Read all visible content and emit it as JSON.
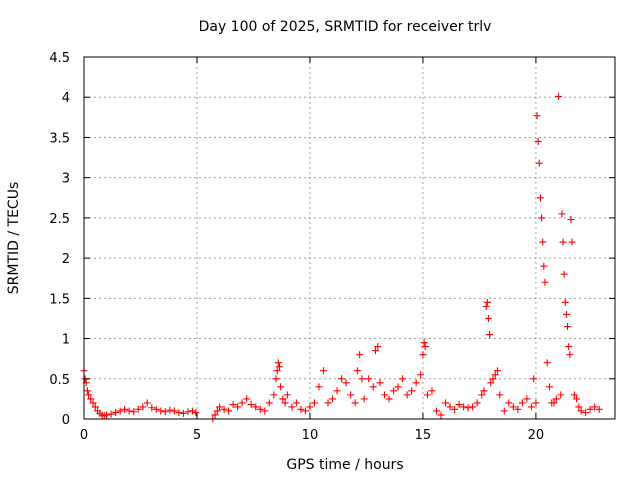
{
  "chart_data": {
    "type": "scatter",
    "title": "Day 100 of 2025, SRMTID for receiver trlv",
    "xlabel": "GPS time / hours",
    "ylabel": "SRMTID / TECUs",
    "xlim": [
      0,
      23.5
    ],
    "ylim": [
      0,
      4.5
    ],
    "xticks": [
      0,
      5,
      10,
      15,
      20
    ],
    "xtick_labels": [
      "0",
      "5",
      "10",
      "15",
      "20"
    ],
    "yticks": [
      0,
      0.5,
      1,
      1.5,
      2,
      2.5,
      3,
      3.5,
      4,
      4.5
    ],
    "ytick_labels": [
      "0",
      "0.5",
      "1",
      "1.5",
      "2",
      "2.5",
      "3",
      "3.5",
      "4",
      "4.5"
    ],
    "grid": true,
    "marker": "plus",
    "series": [
      {
        "name": "SRMTID",
        "color": "#ff0000",
        "x": [
          0.0,
          0.05,
          0.1,
          0.15,
          0.2,
          0.3,
          0.4,
          0.5,
          0.6,
          0.7,
          0.8,
          0.9,
          1.0,
          1.2,
          1.4,
          1.6,
          1.8,
          2.0,
          2.2,
          2.4,
          2.6,
          2.8,
          3.0,
          3.2,
          3.4,
          3.6,
          3.8,
          4.0,
          4.2,
          4.4,
          4.6,
          4.8,
          4.95,
          5.7,
          5.8,
          5.9,
          6.0,
          6.2,
          6.4,
          6.6,
          6.8,
          7.0,
          7.2,
          7.4,
          7.6,
          7.8,
          8.0,
          8.2,
          8.4,
          8.5,
          8.55,
          8.6,
          8.65,
          8.7,
          8.8,
          8.9,
          9.0,
          9.2,
          9.4,
          9.6,
          9.8,
          10.0,
          10.2,
          10.4,
          10.6,
          10.8,
          11.0,
          11.2,
          11.4,
          11.6,
          11.8,
          12.0,
          12.1,
          12.2,
          12.3,
          12.4,
          12.6,
          12.8,
          12.9,
          13.0,
          13.1,
          13.3,
          13.5,
          13.7,
          13.9,
          14.1,
          14.3,
          14.5,
          14.7,
          14.9,
          15.0,
          15.05,
          15.1,
          15.2,
          15.4,
          15.6,
          15.8,
          16.0,
          16.2,
          16.4,
          16.6,
          16.8,
          17.0,
          17.2,
          17.4,
          17.6,
          17.7,
          17.8,
          17.85,
          17.9,
          17.95,
          18.0,
          18.1,
          18.2,
          18.3,
          18.4,
          18.6,
          18.8,
          19.0,
          19.2,
          19.4,
          19.6,
          19.8,
          19.9,
          20.0,
          20.05,
          20.1,
          20.15,
          20.2,
          20.25,
          20.3,
          20.35,
          20.4,
          20.5,
          20.6,
          20.7,
          20.8,
          20.9,
          21.0,
          21.1,
          21.15,
          21.2,
          21.25,
          21.3,
          21.35,
          21.4,
          21.45,
          21.5,
          21.55,
          21.6,
          21.7,
          21.8,
          21.9,
          22.0,
          22.2,
          22.4,
          22.6,
          22.8
        ],
        "y": [
          0.6,
          0.5,
          0.45,
          0.35,
          0.3,
          0.25,
          0.2,
          0.15,
          0.1,
          0.07,
          0.05,
          0.04,
          0.05,
          0.06,
          0.08,
          0.1,
          0.12,
          0.1,
          0.09,
          0.12,
          0.15,
          0.2,
          0.14,
          0.12,
          0.1,
          0.09,
          0.11,
          0.1,
          0.08,
          0.07,
          0.09,
          0.1,
          0.08,
          0.0,
          0.05,
          0.1,
          0.15,
          0.12,
          0.1,
          0.18,
          0.15,
          0.2,
          0.25,
          0.18,
          0.15,
          0.12,
          0.1,
          0.2,
          0.3,
          0.5,
          0.6,
          0.7,
          0.65,
          0.4,
          0.25,
          0.2,
          0.3,
          0.15,
          0.2,
          0.12,
          0.1,
          0.15,
          0.2,
          0.4,
          0.6,
          0.2,
          0.25,
          0.35,
          0.5,
          0.45,
          0.3,
          0.2,
          0.6,
          0.8,
          0.5,
          0.25,
          0.5,
          0.4,
          0.85,
          0.9,
          0.45,
          0.3,
          0.25,
          0.35,
          0.4,
          0.5,
          0.3,
          0.35,
          0.45,
          0.55,
          0.8,
          0.95,
          0.9,
          0.3,
          0.35,
          0.1,
          0.05,
          0.2,
          0.15,
          0.12,
          0.18,
          0.15,
          0.14,
          0.15,
          0.2,
          0.3,
          0.35,
          1.4,
          1.45,
          1.25,
          1.05,
          0.45,
          0.5,
          0.55,
          0.6,
          0.3,
          0.1,
          0.2,
          0.15,
          0.12,
          0.2,
          0.25,
          0.15,
          0.5,
          0.2,
          3.77,
          3.45,
          3.18,
          2.75,
          2.5,
          2.2,
          1.9,
          1.7,
          0.7,
          0.4,
          0.2,
          0.2,
          0.25,
          4.01,
          0.3,
          2.55,
          2.2,
          1.8,
          1.45,
          1.3,
          1.15,
          0.9,
          0.8,
          2.48,
          2.2,
          0.3,
          0.25,
          0.15,
          0.1,
          0.08,
          0.12,
          0.15,
          0.12
        ]
      }
    ]
  }
}
